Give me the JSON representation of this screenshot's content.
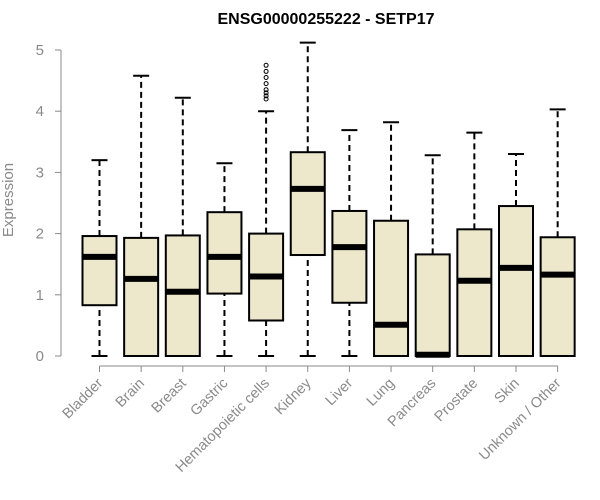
{
  "chart_data": {
    "type": "boxplot",
    "title": "ENSG00000255222 - SETP17",
    "xlabel": "",
    "ylabel": "Expression",
    "ylim": [
      0,
      5.2
    ],
    "yticks": [
      0,
      1,
      2,
      3,
      4,
      5
    ],
    "grid": false,
    "legend": "none",
    "colors": {
      "box_fill": "#ede7cc",
      "box_stroke": "#000000",
      "median": "#000000",
      "axis_text": "#8a8a8a"
    },
    "categories": [
      "Bladder",
      "Brain",
      "Breast",
      "Gastric",
      "Hematopoietic cells",
      "Kidney",
      "Liver",
      "Lung",
      "Pancreas",
      "Prostate",
      "Skin",
      "Unknown / Other"
    ],
    "boxes": [
      {
        "category": "Bladder",
        "min": 0.0,
        "q1": 0.83,
        "median": 1.62,
        "q3": 1.96,
        "max": 3.2
      },
      {
        "category": "Brain",
        "min": 0.0,
        "q1": 0.0,
        "median": 1.26,
        "q3": 1.93,
        "max": 4.58
      },
      {
        "category": "Breast",
        "min": 0.0,
        "q1": 0.0,
        "median": 1.05,
        "q3": 1.97,
        "max": 4.22
      },
      {
        "category": "Gastric",
        "min": 0.0,
        "q1": 1.02,
        "median": 1.62,
        "q3": 2.35,
        "max": 3.15
      },
      {
        "category": "Hematopoietic cells",
        "min": 0.0,
        "q1": 0.58,
        "median": 1.3,
        "q3": 2.0,
        "max": 4.0,
        "outliers": [
          4.2,
          4.25,
          4.3,
          4.35,
          4.45,
          4.55,
          4.65,
          4.75
        ]
      },
      {
        "category": "Kidney",
        "min": 0.0,
        "q1": 1.65,
        "median": 2.73,
        "q3": 3.33,
        "max": 5.12
      },
      {
        "category": "Liver",
        "min": 0.0,
        "q1": 0.87,
        "median": 1.78,
        "q3": 2.37,
        "max": 3.69
      },
      {
        "category": "Lung",
        "min": 0.0,
        "q1": 0.0,
        "median": 0.51,
        "q3": 2.21,
        "max": 3.82
      },
      {
        "category": "Pancreas",
        "min": 0.0,
        "q1": 0.0,
        "median": 0.02,
        "q3": 1.66,
        "max": 3.28
      },
      {
        "category": "Prostate",
        "min": 0.0,
        "q1": 0.0,
        "median": 1.23,
        "q3": 2.07,
        "max": 3.65
      },
      {
        "category": "Skin",
        "min": 0.0,
        "q1": 0.0,
        "median": 1.44,
        "q3": 2.45,
        "max": 3.3
      },
      {
        "category": "Unknown / Other",
        "min": 0.0,
        "q1": 0.0,
        "median": 1.33,
        "q3": 1.94,
        "max": 4.03
      }
    ]
  }
}
